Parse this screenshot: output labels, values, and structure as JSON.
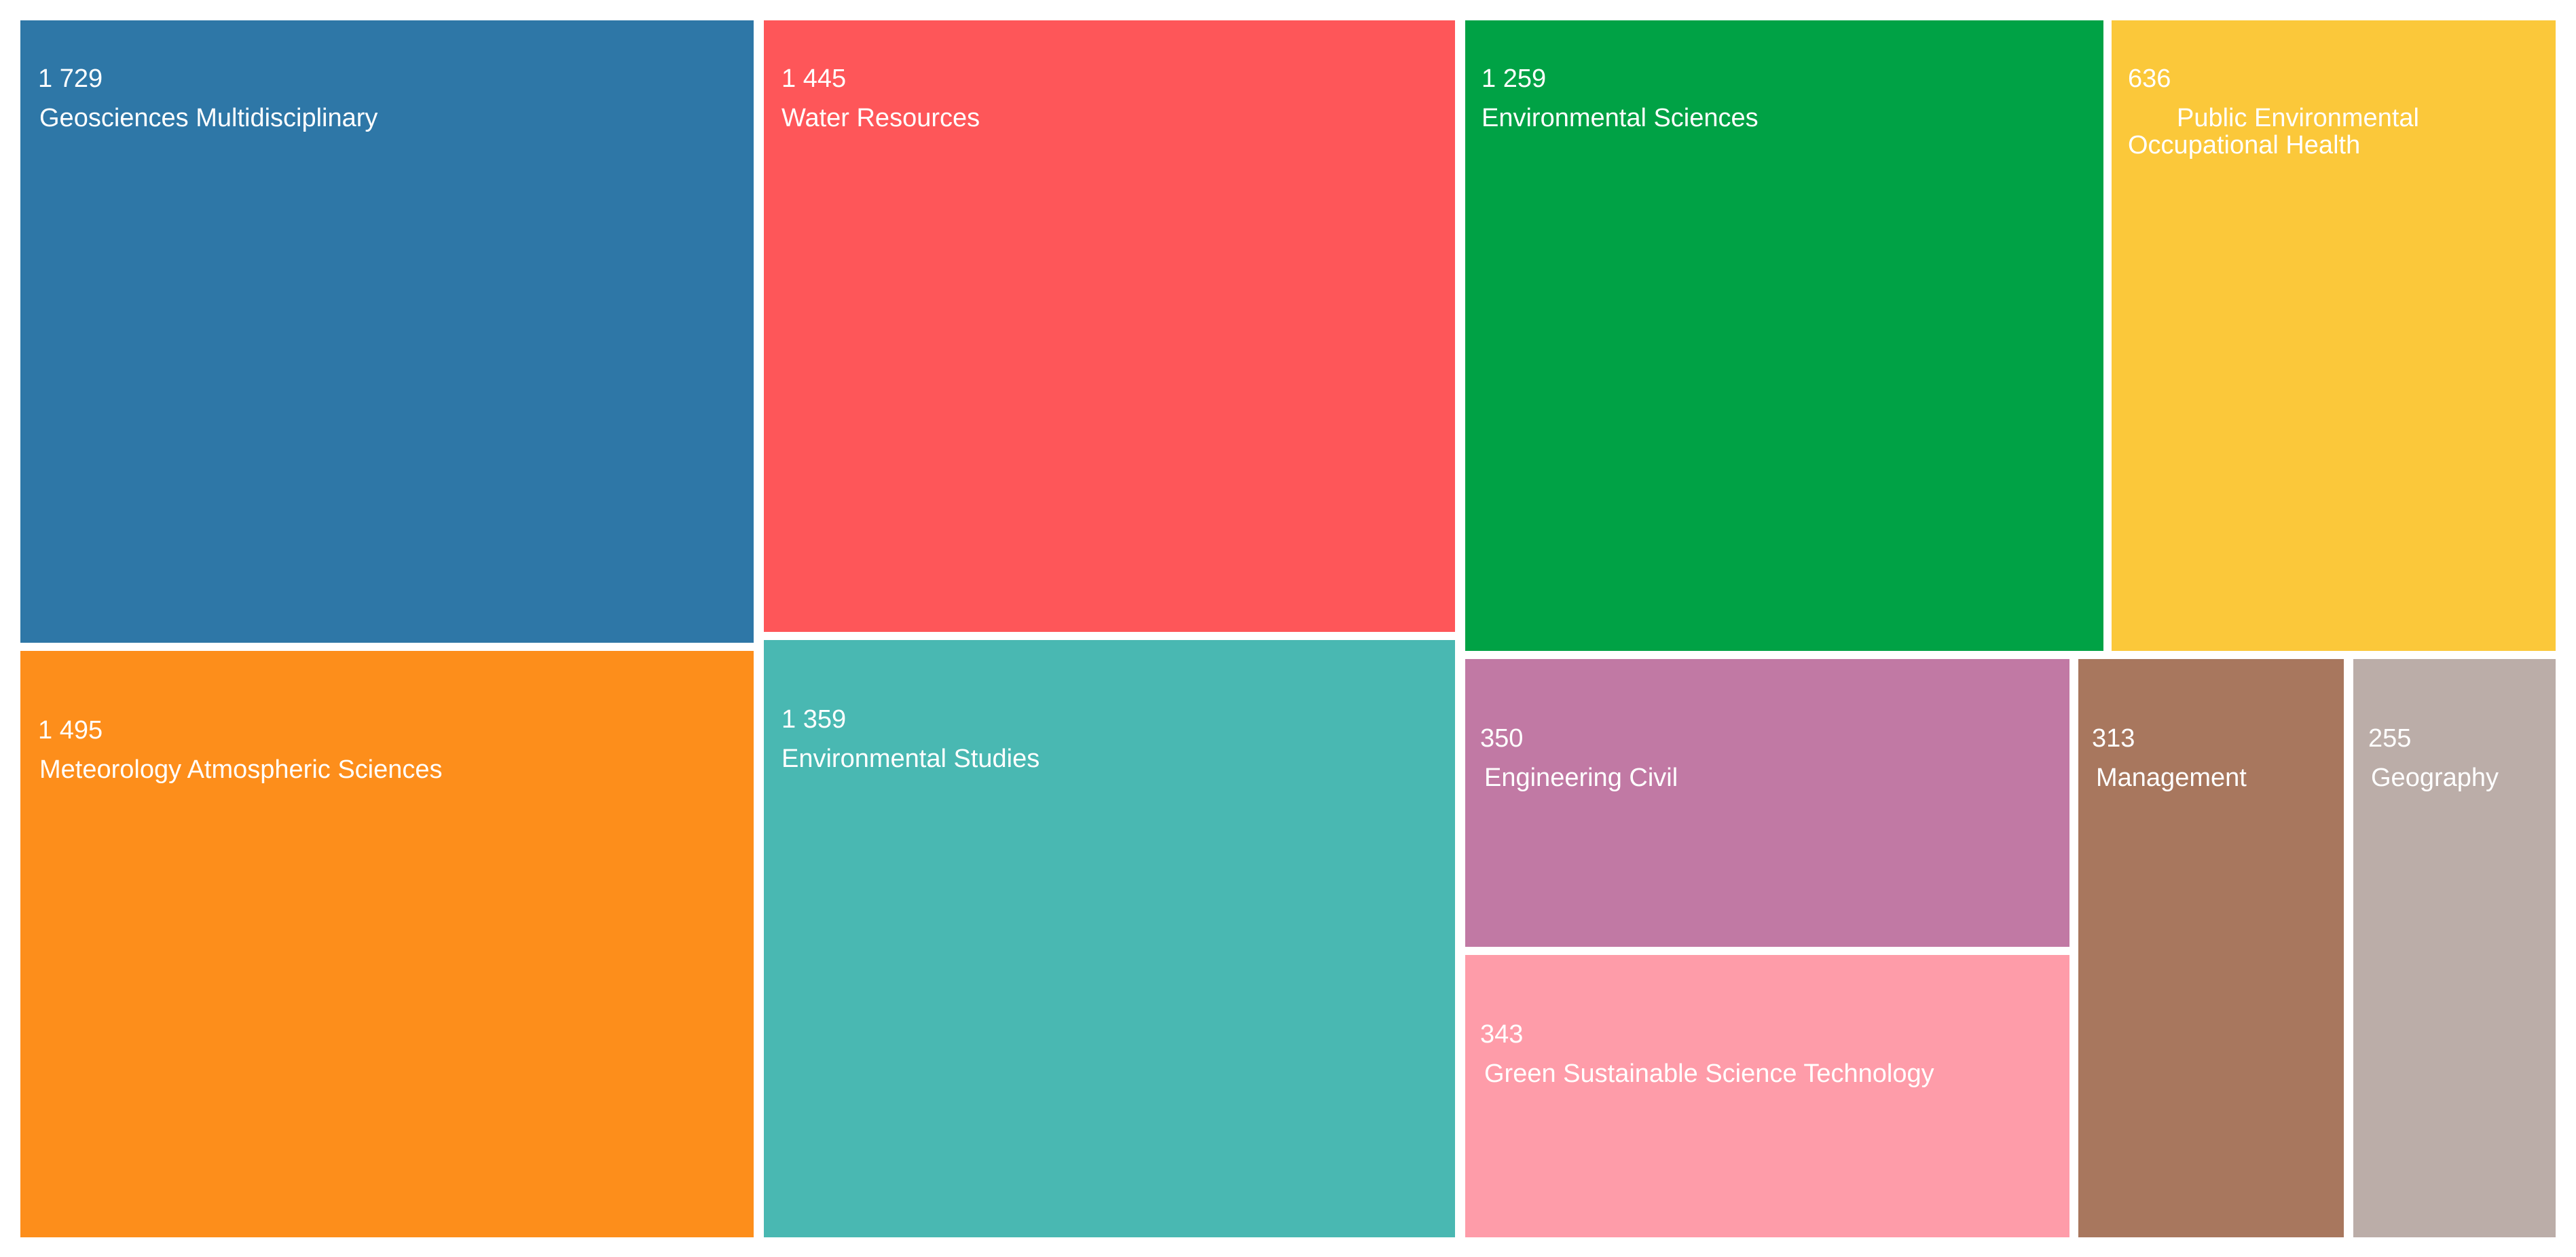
{
  "chart_data": {
    "type": "treemap",
    "title": "",
    "items": [
      {
        "value_label": "1 729",
        "value": 1729,
        "category": [
          "Geosciences Multidisciplinary"
        ],
        "color": "#2e77a7"
      },
      {
        "value_label": "1 495",
        "value": 1495,
        "category": [
          "Meteorology Atmospheric Sciences"
        ],
        "color": "#fd8e1b"
      },
      {
        "value_label": "1 445",
        "value": 1445,
        "category": [
          "Water Resources"
        ],
        "color": "#fe5659"
      },
      {
        "value_label": "1 359",
        "value": 1359,
        "category": [
          "Environmental Studies"
        ],
        "color": "#49b8b2"
      },
      {
        "value_label": "1 259",
        "value": 1259,
        "category": [
          "Environmental Sciences"
        ],
        "color": "#00a245"
      },
      {
        "value_label": "636",
        "value": 636,
        "category": [
          "Public Environmental",
          "Occupational Health"
        ],
        "color": "#fbc83a"
      },
      {
        "value_label": "350",
        "value": 350,
        "category": [
          "Engineering Civil"
        ],
        "color": "#c179a4"
      },
      {
        "value_label": "343",
        "value": 343,
        "category": [
          "Green Sustainable Science Technology"
        ],
        "color": "#fe9ca9"
      },
      {
        "value_label": "313",
        "value": 313,
        "category": [
          "Management"
        ],
        "color": "#a8775e"
      },
      {
        "value_label": "255",
        "value": 255,
        "category": [
          "Geography"
        ],
        "color": "#bbada8"
      }
    ]
  }
}
